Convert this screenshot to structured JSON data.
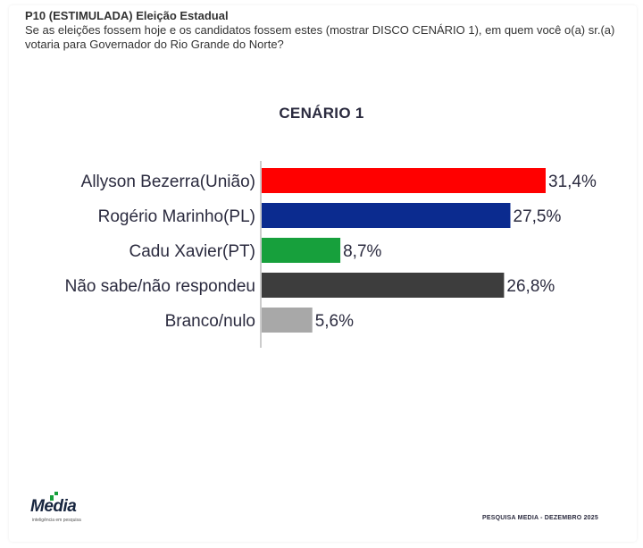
{
  "header": {
    "title": "P10 (ESTIMULADA) Eleição Estadual",
    "question": "Se as eleições fossem hoje e os candidatos fossem estes (mostrar DISCO CENÁRIO 1), em quem você o(a) sr.(a) votaria para Governador do Rio Grande do Norte?"
  },
  "chart_data": {
    "type": "bar",
    "orientation": "horizontal",
    "title": "CENÁRIO 1",
    "categories": [
      "Allyson Bezerra(União)",
      "Rogério Marinho(PL)",
      "Cadu Xavier(PT)",
      "Não sabe/não respondeu",
      "Branco/nulo"
    ],
    "values": [
      31.4,
      27.5,
      8.7,
      26.8,
      5.6
    ],
    "value_labels": [
      "31,4%",
      "27,5%",
      "8,7%",
      "26,8%",
      "5,6%"
    ],
    "colors": [
      "#ff0000",
      "#0b2b8f",
      "#17a03c",
      "#3d3d3d",
      "#a8a8a8"
    ],
    "xlim": [
      0,
      31.4
    ],
    "grid": false,
    "legend": "none"
  },
  "footer": {
    "logo_text": "Media",
    "logo_tagline": "inteligência em pesquisa",
    "source": "PESQUISA MEDIA - DEZEMBRO 2025"
  }
}
